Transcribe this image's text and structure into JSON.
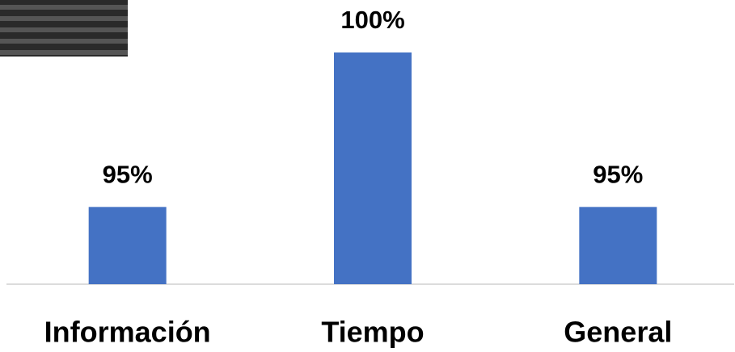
{
  "chart_data": {
    "type": "bar",
    "categories": [
      "Información",
      "Tiempo",
      "General"
    ],
    "values": [
      95,
      100,
      95
    ],
    "value_labels": [
      "95%",
      "100%",
      "95%"
    ],
    "color": "#4472c4",
    "ylim": [
      92.5,
      100
    ]
  }
}
